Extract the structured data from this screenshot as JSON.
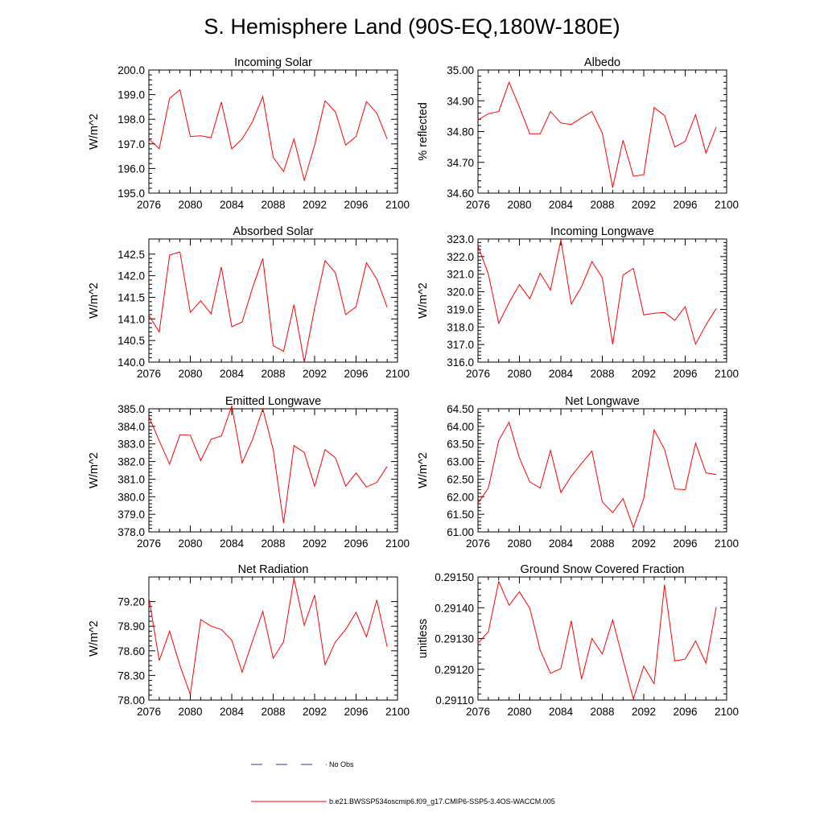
{
  "figure": {
    "title": "S. Hemisphere Land (90S-EQ,180W-180E)"
  },
  "legend": {
    "obs_label": "No Obs",
    "obs_color": "#2b2bd6",
    "model_label": "b.e21.BWSSP534oscmip6.f09_g17.CMIP6-SSP5-3.4OS-WACCM.005",
    "model_color": "#ff0000"
  },
  "chart_data": [
    {
      "type": "line",
      "title": "Incoming Solar",
      "ylabel": "W/m^2",
      "xlabel": "",
      "xlim": [
        2076,
        2100
      ],
      "ylim": [
        195.0,
        200.0
      ],
      "xticks": [
        2076,
        2080,
        2084,
        2088,
        2092,
        2096,
        2100
      ],
      "yticks": [
        195.0,
        196.0,
        197.0,
        198.0,
        199.0,
        200.0
      ],
      "ytick_labels": [
        "195.0",
        "196.0",
        "197.0",
        "198.0",
        "199.0",
        "200.0"
      ],
      "x": [
        2076,
        2077,
        2078,
        2079,
        2080,
        2081,
        2082,
        2083,
        2084,
        2085,
        2086,
        2087,
        2088,
        2089,
        2090,
        2091,
        2092,
        2093,
        2094,
        2095,
        2096,
        2097,
        2098,
        2099
      ],
      "series": [
        {
          "name": "b.e21.BWSSP534oscmip6.f09_g17.CMIP6-SSP5-3.4OS-WACCM.005",
          "values": [
            197.2,
            196.8,
            198.85,
            199.2,
            197.3,
            197.33,
            197.25,
            198.7,
            196.8,
            197.2,
            197.9,
            198.92,
            196.45,
            195.88,
            197.2,
            195.52,
            196.95,
            198.75,
            198.3,
            196.95,
            197.3,
            198.72,
            198.25,
            197.2
          ]
        }
      ]
    },
    {
      "type": "line",
      "title": "Albedo",
      "ylabel": "% reflected",
      "xlabel": "",
      "xlim": [
        2076,
        2100
      ],
      "ylim": [
        34.6,
        35.0
      ],
      "xticks": [
        2076,
        2080,
        2084,
        2088,
        2092,
        2096,
        2100
      ],
      "yticks": [
        34.6,
        34.7,
        34.8,
        34.9,
        35.0
      ],
      "ytick_labels": [
        "34.60",
        "34.70",
        "34.80",
        "34.90",
        "35.00"
      ],
      "x": [
        2076,
        2077,
        2078,
        2079,
        2080,
        2081,
        2082,
        2083,
        2084,
        2085,
        2086,
        2087,
        2088,
        2089,
        2090,
        2091,
        2092,
        2093,
        2094,
        2095,
        2096,
        2097,
        2098,
        2099
      ],
      "series": [
        {
          "name": "b.e21.BWSSP534oscmip6.f09_g17.CMIP6-SSP5-3.4OS-WACCM.005",
          "values": [
            34.838,
            34.858,
            34.865,
            34.96,
            34.88,
            34.793,
            34.793,
            34.865,
            34.828,
            34.823,
            34.845,
            34.865,
            34.795,
            34.618,
            34.772,
            34.655,
            34.66,
            34.878,
            34.852,
            34.75,
            34.768,
            34.855,
            34.73,
            34.815
          ]
        }
      ]
    },
    {
      "type": "line",
      "title": "Absorbed Solar",
      "ylabel": "W/m^2",
      "xlabel": "",
      "xlim": [
        2076,
        2100
      ],
      "ylim": [
        140.0,
        142.85
      ],
      "xticks": [
        2076,
        2080,
        2084,
        2088,
        2092,
        2096,
        2100
      ],
      "yticks": [
        140.0,
        140.5,
        141.0,
        141.5,
        142.0,
        142.5
      ],
      "ytick_labels": [
        "140.0",
        "140.5",
        "141.0",
        "141.5",
        "142.0",
        "142.5"
      ],
      "x": [
        2076,
        2077,
        2078,
        2079,
        2080,
        2081,
        2082,
        2083,
        2084,
        2085,
        2086,
        2087,
        2088,
        2089,
        2090,
        2091,
        2092,
        2093,
        2094,
        2095,
        2096,
        2097,
        2098,
        2099
      ],
      "series": [
        {
          "name": "b.e21.BWSSP534oscmip6.f09_g17.CMIP6-SSP5-3.4OS-WACCM.005",
          "values": [
            141.08,
            140.7,
            142.48,
            142.55,
            141.15,
            141.42,
            141.12,
            142.2,
            140.82,
            140.93,
            141.72,
            142.4,
            140.38,
            140.25,
            141.33,
            140.0,
            141.25,
            142.35,
            142.07,
            141.1,
            141.28,
            142.3,
            141.92,
            141.27
          ]
        }
      ]
    },
    {
      "type": "line",
      "title": "Incoming Longwave",
      "ylabel": "W/m^2",
      "xlabel": "",
      "xlim": [
        2076,
        2100
      ],
      "ylim": [
        316.0,
        323.0
      ],
      "xticks": [
        2076,
        2080,
        2084,
        2088,
        2092,
        2096,
        2100
      ],
      "yticks": [
        316.0,
        317.0,
        318.0,
        319.0,
        320.0,
        321.0,
        322.0,
        323.0
      ],
      "ytick_labels": [
        "316.0",
        "317.0",
        "318.0",
        "319.0",
        "320.0",
        "321.0",
        "322.0",
        "323.0"
      ],
      "x": [
        2076,
        2077,
        2078,
        2079,
        2080,
        2081,
        2082,
        2083,
        2084,
        2085,
        2086,
        2087,
        2088,
        2089,
        2090,
        2091,
        2092,
        2093,
        2094,
        2095,
        2096,
        2097,
        2098,
        2099
      ],
      "series": [
        {
          "name": "b.e21.BWSSP534oscmip6.f09_g17.CMIP6-SSP5-3.4OS-WACCM.005",
          "values": [
            322.6,
            321.0,
            318.2,
            319.38,
            320.4,
            319.6,
            321.05,
            320.1,
            322.95,
            319.3,
            320.3,
            321.72,
            320.8,
            317.0,
            320.95,
            321.33,
            318.68,
            318.78,
            318.82,
            318.38,
            319.15,
            317.02,
            318.12,
            319.05
          ]
        }
      ]
    },
    {
      "type": "line",
      "title": "Emitted Longwave",
      "ylabel": "W/m^2",
      "xlabel": "",
      "xlim": [
        2076,
        2100
      ],
      "ylim": [
        378.0,
        385.0
      ],
      "xticks": [
        2076,
        2080,
        2084,
        2088,
        2092,
        2096,
        2100
      ],
      "yticks": [
        378.0,
        379.0,
        380.0,
        381.0,
        382.0,
        383.0,
        384.0,
        385.0
      ],
      "ytick_labels": [
        "378.0",
        "379.0",
        "380.0",
        "381.0",
        "382.0",
        "383.0",
        "384.0",
        "385.0"
      ],
      "x": [
        2076,
        2077,
        2078,
        2079,
        2080,
        2081,
        2082,
        2083,
        2084,
        2085,
        2086,
        2087,
        2088,
        2089,
        2090,
        2091,
        2092,
        2093,
        2094,
        2095,
        2096,
        2097,
        2098,
        2099
      ],
      "series": [
        {
          "name": "b.e21.BWSSP534oscmip6.f09_g17.CMIP6-SSP5-3.4OS-WACCM.005",
          "values": [
            384.55,
            383.18,
            381.85,
            383.52,
            383.5,
            382.05,
            383.27,
            383.45,
            385.15,
            381.92,
            383.25,
            385.0,
            382.68,
            378.5,
            382.9,
            382.52,
            380.6,
            382.68,
            382.22,
            380.6,
            381.35,
            380.55,
            380.82,
            381.72
          ]
        }
      ]
    },
    {
      "type": "line",
      "title": "Net Longwave",
      "ylabel": "W/m^2",
      "xlabel": "",
      "xlim": [
        2076,
        2100
      ],
      "ylim": [
        61.0,
        64.5
      ],
      "xticks": [
        2076,
        2080,
        2084,
        2088,
        2092,
        2096,
        2100
      ],
      "yticks": [
        61.0,
        61.5,
        62.0,
        62.5,
        63.0,
        63.5,
        64.0,
        64.5
      ],
      "ytick_labels": [
        "61.00",
        "61.50",
        "62.00",
        "62.50",
        "63.00",
        "63.50",
        "64.00",
        "64.50"
      ],
      "x": [
        2076,
        2077,
        2078,
        2079,
        2080,
        2081,
        2082,
        2083,
        2084,
        2085,
        2086,
        2087,
        2088,
        2089,
        2090,
        2091,
        2092,
        2093,
        2094,
        2095,
        2096,
        2097,
        2098,
        2099
      ],
      "series": [
        {
          "name": "b.e21.BWSSP534oscmip6.f09_g17.CMIP6-SSP5-3.4OS-WACCM.005",
          "values": [
            61.82,
            62.25,
            63.6,
            64.12,
            63.1,
            62.42,
            62.25,
            63.32,
            62.12,
            62.58,
            62.95,
            63.3,
            61.85,
            61.55,
            61.95,
            61.12,
            61.95,
            63.9,
            63.35,
            62.22,
            62.2,
            63.52,
            62.68,
            62.63
          ]
        }
      ]
    },
    {
      "type": "line",
      "title": "Net Radiation",
      "ylabel": "W/m^2",
      "xlabel": "",
      "xlim": [
        2076,
        2100
      ],
      "ylim": [
        78.0,
        79.5
      ],
      "xticks": [
        2076,
        2080,
        2084,
        2088,
        2092,
        2096,
        2100
      ],
      "yticks": [
        78.0,
        78.3,
        78.6,
        78.9,
        79.2
      ],
      "ytick_labels": [
        "78.00",
        "78.30",
        "78.60",
        "78.90",
        "79.20"
      ],
      "x": [
        2076,
        2077,
        2078,
        2079,
        2080,
        2081,
        2082,
        2083,
        2084,
        2085,
        2086,
        2087,
        2088,
        2089,
        2090,
        2091,
        2092,
        2093,
        2094,
        2095,
        2096,
        2097,
        2098,
        2099
      ],
      "series": [
        {
          "name": "b.e21.BWSSP534oscmip6.f09_g17.CMIP6-SSP5-3.4OS-WACCM.005",
          "values": [
            79.25,
            78.48,
            78.84,
            78.42,
            78.07,
            78.98,
            78.9,
            78.86,
            78.73,
            78.34,
            78.72,
            79.08,
            78.51,
            78.71,
            79.48,
            78.91,
            79.28,
            78.43,
            78.71,
            78.86,
            79.07,
            78.77,
            79.22,
            78.65
          ]
        }
      ]
    },
    {
      "type": "line",
      "title": "Ground Snow Covered Fraction",
      "ylabel": "unitless",
      "xlabel": "",
      "xlim": [
        2076,
        2100
      ],
      "ylim": [
        0.2911,
        0.2915
      ],
      "xticks": [
        2076,
        2080,
        2084,
        2088,
        2092,
        2096,
        2100
      ],
      "yticks": [
        0.2911,
        0.2912,
        0.2913,
        0.2914,
        0.2915
      ],
      "ytick_labels": [
        "0.29110",
        "0.29120",
        "0.29130",
        "0.29140",
        "0.29150"
      ],
      "x": [
        2076,
        2077,
        2078,
        2079,
        2080,
        2081,
        2082,
        2083,
        2084,
        2085,
        2086,
        2087,
        2088,
        2089,
        2090,
        2091,
        2092,
        2093,
        2094,
        2095,
        2096,
        2097,
        2098,
        2099
      ],
      "series": [
        {
          "name": "b.e21.BWSSP534oscmip6.f09_g17.CMIP6-SSP5-3.4OS-WACCM.005",
          "values": [
            0.291285,
            0.291322,
            0.291485,
            0.291408,
            0.291452,
            0.291398,
            0.291262,
            0.291187,
            0.291202,
            0.291358,
            0.291168,
            0.2913,
            0.29125,
            0.29136,
            0.29123,
            0.291104,
            0.29121,
            0.291153,
            0.291475,
            0.291227,
            0.291233,
            0.291292,
            0.29122,
            0.291402
          ]
        }
      ]
    }
  ]
}
